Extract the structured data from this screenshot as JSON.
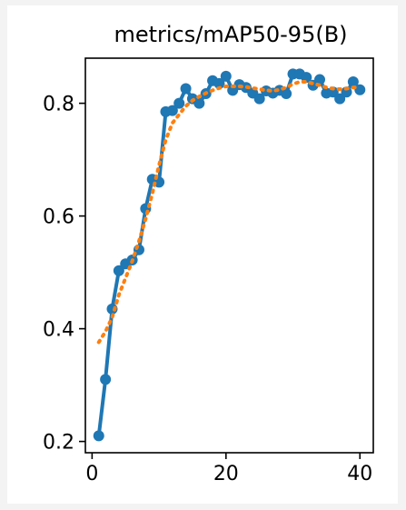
{
  "chart_data": {
    "type": "line",
    "title": "metrics/mAP50-95(B)",
    "xlabel": "",
    "ylabel": "",
    "xlim": [
      -1,
      42
    ],
    "ylim": [
      0.18,
      0.88
    ],
    "x_ticks": [
      0,
      20,
      40
    ],
    "y_ticks": [
      0.2,
      0.4,
      0.6,
      0.8
    ],
    "grid": false,
    "legend": "none",
    "series": [
      {
        "style": "solid-markers",
        "color": "#1f77b4",
        "x": [
          1,
          2,
          3,
          4,
          5,
          6,
          7,
          8,
          9,
          10,
          11,
          12,
          13,
          14,
          15,
          16,
          17,
          18,
          19,
          20,
          21,
          22,
          23,
          24,
          25,
          26,
          27,
          28,
          29,
          30,
          31,
          32,
          33,
          34,
          35,
          36,
          37,
          38,
          39,
          40
        ],
        "y": [
          0.21,
          0.31,
          0.435,
          0.503,
          0.515,
          0.522,
          0.54,
          0.613,
          0.665,
          0.66,
          0.785,
          0.787,
          0.8,
          0.826,
          0.808,
          0.8,
          0.817,
          0.84,
          0.835,
          0.848,
          0.823,
          0.833,
          0.828,
          0.818,
          0.808,
          0.822,
          0.818,
          0.823,
          0.817,
          0.852,
          0.852,
          0.846,
          0.832,
          0.842,
          0.818,
          0.82,
          0.808,
          0.82,
          0.838,
          0.824
        ]
      },
      {
        "style": "dotted",
        "color": "#ff7f0e",
        "x": [
          1,
          2,
          3,
          4,
          5,
          6,
          7,
          8,
          9,
          10,
          11,
          12,
          13,
          14,
          15,
          16,
          17,
          18,
          19,
          20,
          21,
          22,
          23,
          24,
          25,
          26,
          27,
          28,
          29,
          30,
          31,
          32,
          33,
          34,
          35,
          36,
          37,
          38,
          39,
          40
        ],
        "y": [
          0.376,
          0.395,
          0.42,
          0.46,
          0.49,
          0.52,
          0.555,
          0.595,
          0.64,
          0.69,
          0.735,
          0.765,
          0.78,
          0.795,
          0.805,
          0.812,
          0.818,
          0.823,
          0.827,
          0.83,
          0.83,
          0.83,
          0.829,
          0.827,
          0.825,
          0.823,
          0.822,
          0.824,
          0.828,
          0.834,
          0.838,
          0.838,
          0.835,
          0.832,
          0.828,
          0.826,
          0.825,
          0.826,
          0.828,
          0.829
        ]
      }
    ]
  }
}
